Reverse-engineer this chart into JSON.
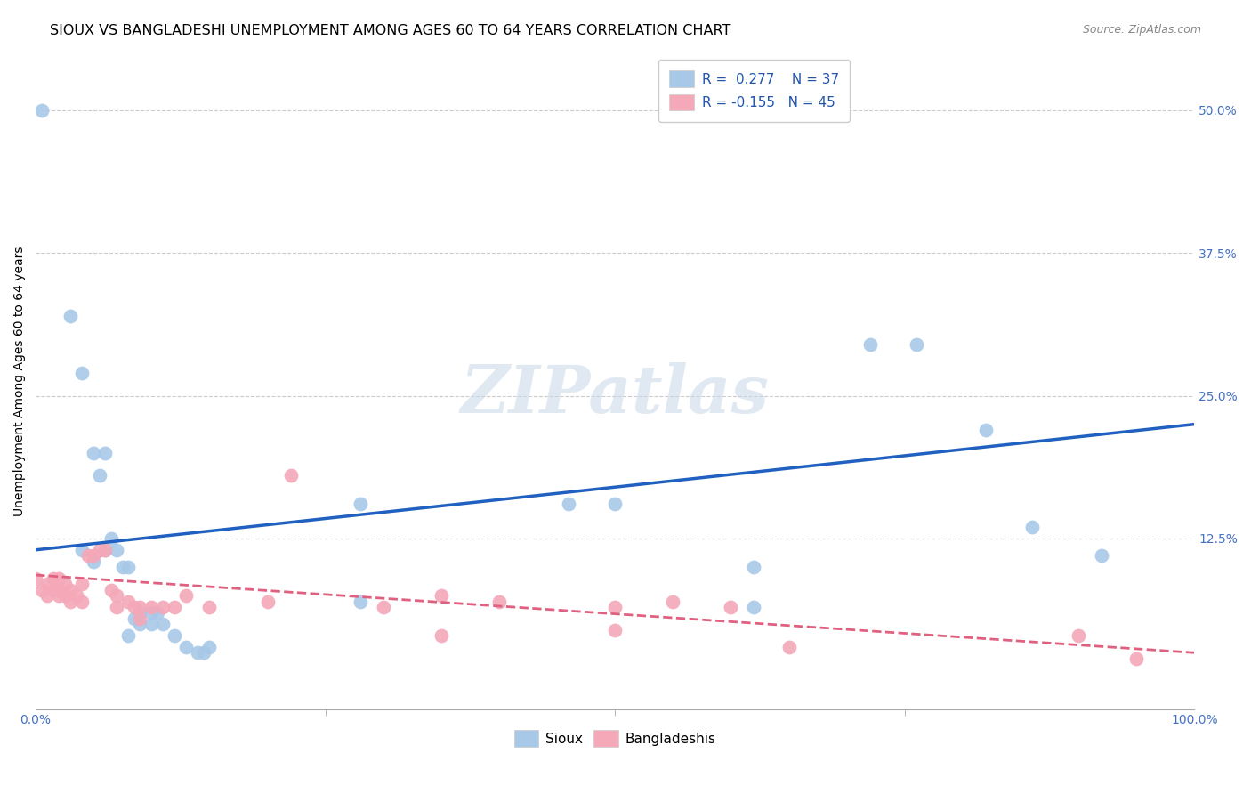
{
  "title": "SIOUX VS BANGLADESHI UNEMPLOYMENT AMONG AGES 60 TO 64 YEARS CORRELATION CHART",
  "source": "Source: ZipAtlas.com",
  "ylabel": "Unemployment Among Ages 60 to 64 years",
  "xlim": [
    0.0,
    1.0
  ],
  "ylim": [
    -0.025,
    0.55
  ],
  "xtick_labels_edge": [
    "0.0%",
    "100.0%"
  ],
  "xtick_values_edge": [
    0.0,
    1.0
  ],
  "ytick_labels": [
    "12.5%",
    "25.0%",
    "37.5%",
    "50.0%"
  ],
  "ytick_values": [
    0.125,
    0.25,
    0.375,
    0.5
  ],
  "sioux_color": "#a8c8e8",
  "bangladeshi_color": "#f4a8b8",
  "sioux_line_color": "#2060c0",
  "bangladeshi_line_color": "#e06080",
  "legend_line1": "R =  0.277    N = 37",
  "legend_line2": "R = -0.155   N = 45",
  "watermark": "ZIPatlas",
  "sioux_points": [
    [
      0.005,
      0.5
    ],
    [
      0.03,
      0.32
    ],
    [
      0.04,
      0.27
    ],
    [
      0.04,
      0.115
    ],
    [
      0.05,
      0.2
    ],
    [
      0.05,
      0.105
    ],
    [
      0.055,
      0.18
    ],
    [
      0.06,
      0.2
    ],
    [
      0.06,
      0.115
    ],
    [
      0.065,
      0.125
    ],
    [
      0.07,
      0.115
    ],
    [
      0.075,
      0.1
    ],
    [
      0.08,
      0.1
    ],
    [
      0.08,
      0.04
    ],
    [
      0.085,
      0.055
    ],
    [
      0.09,
      0.06
    ],
    [
      0.09,
      0.05
    ],
    [
      0.1,
      0.06
    ],
    [
      0.1,
      0.05
    ],
    [
      0.105,
      0.06
    ],
    [
      0.11,
      0.05
    ],
    [
      0.12,
      0.04
    ],
    [
      0.13,
      0.03
    ],
    [
      0.14,
      0.025
    ],
    [
      0.145,
      0.025
    ],
    [
      0.15,
      0.03
    ],
    [
      0.28,
      0.155
    ],
    [
      0.28,
      0.07
    ],
    [
      0.46,
      0.155
    ],
    [
      0.5,
      0.155
    ],
    [
      0.62,
      0.1
    ],
    [
      0.62,
      0.065
    ],
    [
      0.72,
      0.295
    ],
    [
      0.76,
      0.295
    ],
    [
      0.82,
      0.22
    ],
    [
      0.86,
      0.135
    ],
    [
      0.92,
      0.11
    ]
  ],
  "bangladeshi_points": [
    [
      0.0,
      0.09
    ],
    [
      0.005,
      0.08
    ],
    [
      0.01,
      0.085
    ],
    [
      0.01,
      0.075
    ],
    [
      0.015,
      0.09
    ],
    [
      0.015,
      0.08
    ],
    [
      0.02,
      0.09
    ],
    [
      0.02,
      0.08
    ],
    [
      0.02,
      0.075
    ],
    [
      0.025,
      0.085
    ],
    [
      0.025,
      0.075
    ],
    [
      0.03,
      0.08
    ],
    [
      0.03,
      0.07
    ],
    [
      0.035,
      0.075
    ],
    [
      0.04,
      0.085
    ],
    [
      0.04,
      0.07
    ],
    [
      0.045,
      0.11
    ],
    [
      0.05,
      0.11
    ],
    [
      0.055,
      0.115
    ],
    [
      0.06,
      0.115
    ],
    [
      0.065,
      0.08
    ],
    [
      0.07,
      0.075
    ],
    [
      0.07,
      0.065
    ],
    [
      0.08,
      0.07
    ],
    [
      0.085,
      0.065
    ],
    [
      0.09,
      0.065
    ],
    [
      0.09,
      0.055
    ],
    [
      0.1,
      0.065
    ],
    [
      0.11,
      0.065
    ],
    [
      0.12,
      0.065
    ],
    [
      0.13,
      0.075
    ],
    [
      0.15,
      0.065
    ],
    [
      0.2,
      0.07
    ],
    [
      0.22,
      0.18
    ],
    [
      0.3,
      0.065
    ],
    [
      0.35,
      0.075
    ],
    [
      0.35,
      0.04
    ],
    [
      0.4,
      0.07
    ],
    [
      0.5,
      0.065
    ],
    [
      0.5,
      0.045
    ],
    [
      0.55,
      0.07
    ],
    [
      0.6,
      0.065
    ],
    [
      0.65,
      0.03
    ],
    [
      0.9,
      0.04
    ],
    [
      0.95,
      0.02
    ]
  ],
  "sioux_trend": [
    0.0,
    1.0,
    0.115,
    0.225
  ],
  "bangladeshi_trend": [
    0.0,
    1.0,
    0.093,
    0.025
  ],
  "background_color": "#ffffff",
  "grid_color": "#cccccc",
  "title_fontsize": 11.5,
  "axis_label_fontsize": 10,
  "tick_fontsize": 10,
  "legend_fontsize": 11
}
